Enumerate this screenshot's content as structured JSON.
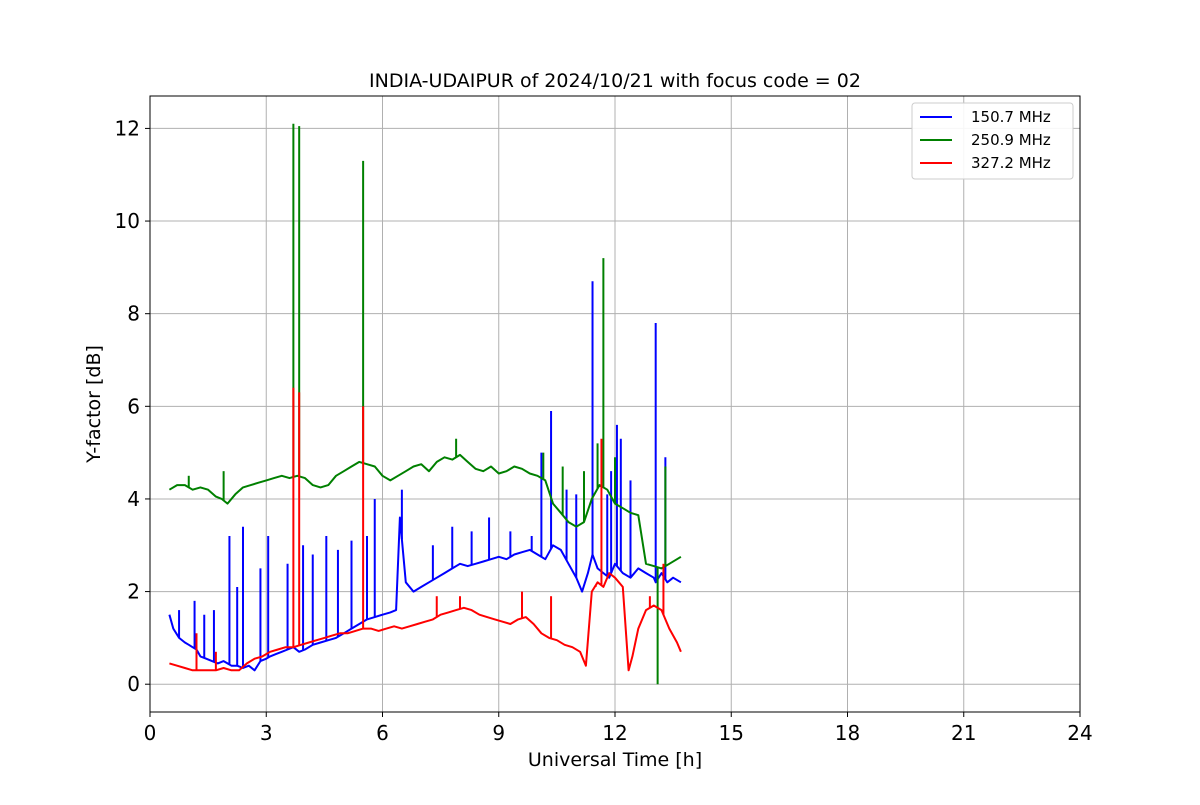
{
  "chart_data": {
    "type": "line",
    "title": "INDIA-UDAIPUR of 2024/10/21 with focus code = 02",
    "xlabel": "Universal Time [h]",
    "ylabel": "Y-factor [dB]",
    "xlim": [
      0,
      24
    ],
    "ylim": [
      -0.6,
      12.7
    ],
    "xticks": [
      0,
      3,
      6,
      9,
      12,
      15,
      18,
      21,
      24
    ],
    "yticks": [
      0,
      2,
      4,
      6,
      8,
      10,
      12
    ],
    "grid": true,
    "legend_position": "top-right",
    "series": [
      {
        "name": "150.7 MHz",
        "color": "#0000ff",
        "x": [
          0.5,
          0.6,
          0.75,
          0.9,
          1.0,
          1.1,
          1.2,
          1.3,
          1.45,
          1.6,
          1.75,
          1.9,
          2.0,
          2.1,
          2.25,
          2.4,
          2.55,
          2.7,
          2.85,
          3.0,
          3.1,
          3.25,
          3.4,
          3.55,
          3.7,
          3.85,
          4.0,
          4.2,
          4.4,
          4.6,
          4.8,
          5.0,
          5.2,
          5.4,
          5.6,
          5.8,
          6.0,
          6.2,
          6.35,
          6.45,
          6.6,
          6.8,
          7.0,
          7.2,
          7.4,
          7.6,
          7.8,
          8.0,
          8.2,
          8.4,
          8.6,
          8.8,
          9.0,
          9.2,
          9.4,
          9.6,
          9.8,
          10.0,
          10.2,
          10.4,
          10.6,
          10.8,
          11.0,
          11.15,
          11.3,
          11.42,
          11.55,
          11.7,
          11.85,
          12.0,
          12.2,
          12.4,
          12.6,
          12.8,
          13.0,
          13.05,
          13.2,
          13.35,
          13.5,
          13.7
        ],
        "values": [
          1.5,
          1.2,
          1.0,
          0.9,
          0.85,
          0.8,
          0.75,
          0.6,
          0.55,
          0.5,
          0.45,
          0.5,
          0.45,
          0.4,
          0.4,
          0.35,
          0.4,
          0.3,
          0.5,
          0.55,
          0.6,
          0.65,
          0.7,
          0.75,
          0.8,
          0.7,
          0.75,
          0.85,
          0.9,
          0.95,
          1.0,
          1.1,
          1.2,
          1.3,
          1.4,
          1.45,
          1.5,
          1.55,
          1.6,
          3.6,
          2.2,
          2.0,
          2.1,
          2.2,
          2.3,
          2.4,
          2.5,
          2.6,
          2.55,
          2.6,
          2.65,
          2.7,
          2.75,
          2.7,
          2.8,
          2.85,
          2.9,
          2.8,
          2.7,
          3.0,
          2.9,
          2.6,
          2.3,
          2.0,
          2.4,
          2.8,
          2.5,
          2.4,
          2.3,
          2.6,
          2.4,
          2.3,
          2.5,
          2.4,
          2.3,
          2.2,
          2.4,
          2.2,
          2.3,
          2.2
        ],
        "spikes": [
          [
            0.75,
            1.6
          ],
          [
            1.15,
            1.8
          ],
          [
            1.4,
            1.5
          ],
          [
            1.65,
            1.6
          ],
          [
            2.05,
            3.2
          ],
          [
            2.25,
            2.1
          ],
          [
            2.4,
            3.4
          ],
          [
            2.85,
            2.5
          ],
          [
            3.05,
            3.2
          ],
          [
            3.55,
            2.6
          ],
          [
            3.95,
            3.0
          ],
          [
            4.2,
            2.8
          ],
          [
            4.55,
            3.2
          ],
          [
            4.85,
            2.9
          ],
          [
            5.2,
            3.1
          ],
          [
            5.6,
            3.2
          ],
          [
            5.8,
            4.0
          ],
          [
            6.5,
            4.2
          ],
          [
            7.3,
            3.0
          ],
          [
            7.8,
            3.4
          ],
          [
            8.3,
            3.3
          ],
          [
            8.75,
            3.6
          ],
          [
            9.3,
            3.3
          ],
          [
            9.85,
            3.2
          ],
          [
            10.1,
            5.0
          ],
          [
            10.35,
            5.9
          ],
          [
            10.75,
            4.2
          ],
          [
            11.0,
            4.1
          ],
          [
            11.42,
            8.7
          ],
          [
            11.8,
            4.1
          ],
          [
            11.9,
            4.6
          ],
          [
            12.05,
            5.6
          ],
          [
            12.15,
            5.3
          ],
          [
            12.4,
            4.4
          ],
          [
            13.05,
            7.8
          ],
          [
            13.3,
            4.9
          ]
        ]
      },
      {
        "name": "250.9 MHz",
        "color": "#008000",
        "x": [
          0.5,
          0.7,
          0.9,
          1.1,
          1.3,
          1.5,
          1.7,
          1.85,
          2.0,
          2.2,
          2.4,
          2.6,
          2.8,
          3.0,
          3.2,
          3.4,
          3.6,
          3.8,
          4.0,
          4.2,
          4.4,
          4.6,
          4.8,
          5.0,
          5.2,
          5.4,
          5.6,
          5.8,
          6.0,
          6.2,
          6.4,
          6.6,
          6.8,
          7.0,
          7.2,
          7.4,
          7.6,
          7.8,
          8.0,
          8.2,
          8.4,
          8.6,
          8.8,
          9.0,
          9.2,
          9.4,
          9.6,
          9.8,
          10.0,
          10.2,
          10.4,
          10.6,
          10.8,
          11.0,
          11.2,
          11.4,
          11.6,
          11.8,
          12.0,
          12.2,
          12.4,
          12.6,
          12.8,
          13.0,
          13.2,
          13.4,
          13.6,
          13.7
        ],
        "values": [
          4.2,
          4.3,
          4.3,
          4.2,
          4.25,
          4.2,
          4.05,
          4.0,
          3.9,
          4.1,
          4.25,
          4.3,
          4.35,
          4.4,
          4.45,
          4.5,
          4.45,
          4.5,
          4.45,
          4.3,
          4.25,
          4.3,
          4.5,
          4.6,
          4.7,
          4.8,
          4.75,
          4.7,
          4.5,
          4.4,
          4.5,
          4.6,
          4.7,
          4.75,
          4.6,
          4.8,
          4.9,
          4.85,
          4.95,
          4.8,
          4.65,
          4.6,
          4.7,
          4.55,
          4.6,
          4.7,
          4.65,
          4.55,
          4.5,
          4.4,
          3.9,
          3.7,
          3.5,
          3.4,
          3.5,
          4.0,
          4.3,
          4.2,
          3.9,
          3.8,
          3.7,
          3.65,
          2.6,
          2.55,
          2.5,
          2.6,
          2.7,
          2.75
        ],
        "spikes": [
          [
            1.0,
            4.5
          ],
          [
            1.9,
            4.6
          ],
          [
            3.7,
            12.1
          ],
          [
            3.85,
            12.05
          ],
          [
            5.5,
            11.3
          ],
          [
            7.9,
            5.3
          ],
          [
            10.15,
            5.0
          ],
          [
            10.65,
            4.7
          ],
          [
            11.2,
            4.6
          ],
          [
            11.55,
            5.2
          ],
          [
            11.7,
            9.2
          ],
          [
            12.0,
            4.9
          ],
          [
            13.1,
            0.0
          ],
          [
            13.3,
            4.7
          ]
        ]
      },
      {
        "name": "327.2 MHz",
        "color": "#ff0000",
        "x": [
          0.5,
          0.7,
          0.9,
          1.1,
          1.3,
          1.5,
          1.7,
          1.9,
          2.1,
          2.3,
          2.5,
          2.7,
          2.9,
          3.1,
          3.3,
          3.5,
          3.7,
          3.9,
          4.1,
          4.3,
          4.5,
          4.7,
          4.9,
          5.1,
          5.3,
          5.5,
          5.7,
          5.9,
          6.1,
          6.3,
          6.5,
          6.7,
          6.9,
          7.1,
          7.3,
          7.5,
          7.7,
          7.9,
          8.1,
          8.3,
          8.5,
          8.7,
          8.9,
          9.1,
          9.3,
          9.5,
          9.7,
          9.9,
          10.1,
          10.3,
          10.5,
          10.7,
          10.9,
          11.1,
          11.25,
          11.4,
          11.55,
          11.7,
          11.85,
          12.0,
          12.2,
          12.35,
          12.45,
          12.6,
          12.8,
          13.0,
          13.2,
          13.4,
          13.6,
          13.7
        ],
        "values": [
          0.45,
          0.4,
          0.35,
          0.3,
          0.3,
          0.3,
          0.3,
          0.35,
          0.3,
          0.3,
          0.45,
          0.55,
          0.6,
          0.7,
          0.75,
          0.8,
          0.8,
          0.85,
          0.9,
          0.95,
          1.0,
          1.05,
          1.1,
          1.1,
          1.15,
          1.2,
          1.2,
          1.15,
          1.2,
          1.25,
          1.2,
          1.25,
          1.3,
          1.35,
          1.4,
          1.5,
          1.55,
          1.6,
          1.65,
          1.6,
          1.5,
          1.45,
          1.4,
          1.35,
          1.3,
          1.4,
          1.45,
          1.3,
          1.1,
          1.0,
          0.95,
          0.85,
          0.8,
          0.7,
          0.4,
          2.0,
          2.2,
          2.1,
          2.4,
          2.3,
          2.1,
          0.3,
          0.6,
          1.2,
          1.6,
          1.7,
          1.6,
          1.2,
          0.9,
          0.7
        ],
        "spikes": [
          [
            1.2,
            1.1
          ],
          [
            1.7,
            0.7
          ],
          [
            3.7,
            6.4
          ],
          [
            3.85,
            6.3
          ],
          [
            5.5,
            6.0
          ],
          [
            7.4,
            1.9
          ],
          [
            8.0,
            1.9
          ],
          [
            9.6,
            2.0
          ],
          [
            10.35,
            1.9
          ],
          [
            11.5,
            2.1
          ],
          [
            11.65,
            5.3
          ],
          [
            12.9,
            1.9
          ],
          [
            13.25,
            2.6
          ]
        ]
      }
    ]
  }
}
